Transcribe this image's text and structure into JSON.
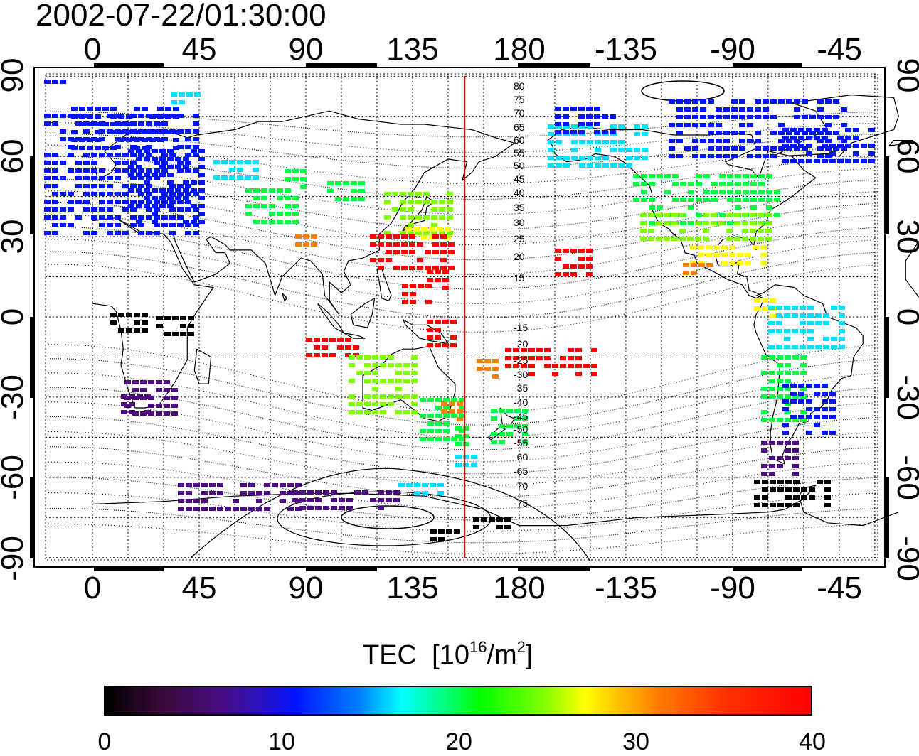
{
  "timestamp": "2002-07-22/01:30:00",
  "map": {
    "lon_labels": [
      "0",
      "45",
      "90",
      "135",
      "180",
      "-135",
      "-90",
      "-45"
    ],
    "lat_labels": [
      "90",
      "60",
      "30",
      "0",
      "-30",
      "-60",
      "-90"
    ],
    "contour_labels_north": [
      "80",
      "75",
      "70",
      "65",
      "60",
      "55",
      "50",
      "45",
      "40",
      "35",
      "30",
      "25",
      "20",
      "15"
    ],
    "contour_labels_south": [
      "-15",
      "-20",
      "-25",
      "-30",
      "-35",
      "-40",
      "-45",
      "-50",
      "-55",
      "-60",
      "-65",
      "-70",
      "-75"
    ],
    "meridian_marker_lon": 157,
    "meridian_marker_color": "#e00000"
  },
  "colorbar": {
    "title": "TEC",
    "unit_base": "[10",
    "unit_exp": "16",
    "unit_mid": "/m",
    "unit_exp2": "2",
    "unit_end": "]",
    "ticks": [
      "0",
      "10",
      "20",
      "30",
      "40"
    ],
    "range": [
      0,
      40
    ]
  },
  "colors": {
    "tec_0": "#000000",
    "tec_5": "#4a0c7e",
    "tec_10": "#0014ff",
    "tec_15": "#00e0ff",
    "tec_20": "#00ff40",
    "tec_25": "#80ff00",
    "tec_30": "#ffff00",
    "tec_35": "#ff8000",
    "tec_40": "#ff0000"
  }
}
